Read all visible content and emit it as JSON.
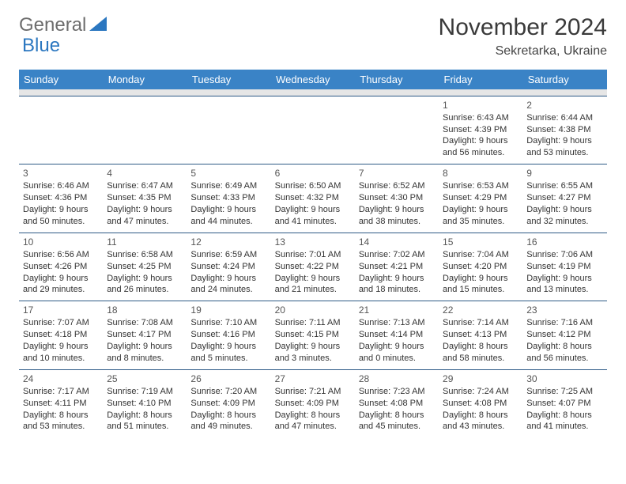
{
  "brand": {
    "part1": "General",
    "part2": "Blue"
  },
  "title": "November 2024",
  "location": "Sekretarka, Ukraine",
  "colors": {
    "header_bg": "#3a83c6",
    "header_text": "#ffffff",
    "sep_bg": "#e6e6e6",
    "border": "#2f5b87",
    "brand_grey": "#6d6d6d",
    "brand_blue": "#2b77c0",
    "text": "#333333"
  },
  "fonts": {
    "title_size": 30,
    "location_size": 16,
    "header_size": 13,
    "cell_size": 11
  },
  "weekdays": [
    "Sunday",
    "Monday",
    "Tuesday",
    "Wednesday",
    "Thursday",
    "Friday",
    "Saturday"
  ],
  "weeks": [
    [
      null,
      null,
      null,
      null,
      null,
      {
        "n": "1",
        "sunrise": "Sunrise: 6:43 AM",
        "sunset": "Sunset: 4:39 PM",
        "day": "Daylight: 9 hours and 56 minutes."
      },
      {
        "n": "2",
        "sunrise": "Sunrise: 6:44 AM",
        "sunset": "Sunset: 4:38 PM",
        "day": "Daylight: 9 hours and 53 minutes."
      }
    ],
    [
      {
        "n": "3",
        "sunrise": "Sunrise: 6:46 AM",
        "sunset": "Sunset: 4:36 PM",
        "day": "Daylight: 9 hours and 50 minutes."
      },
      {
        "n": "4",
        "sunrise": "Sunrise: 6:47 AM",
        "sunset": "Sunset: 4:35 PM",
        "day": "Daylight: 9 hours and 47 minutes."
      },
      {
        "n": "5",
        "sunrise": "Sunrise: 6:49 AM",
        "sunset": "Sunset: 4:33 PM",
        "day": "Daylight: 9 hours and 44 minutes."
      },
      {
        "n": "6",
        "sunrise": "Sunrise: 6:50 AM",
        "sunset": "Sunset: 4:32 PM",
        "day": "Daylight: 9 hours and 41 minutes."
      },
      {
        "n": "7",
        "sunrise": "Sunrise: 6:52 AM",
        "sunset": "Sunset: 4:30 PM",
        "day": "Daylight: 9 hours and 38 minutes."
      },
      {
        "n": "8",
        "sunrise": "Sunrise: 6:53 AM",
        "sunset": "Sunset: 4:29 PM",
        "day": "Daylight: 9 hours and 35 minutes."
      },
      {
        "n": "9",
        "sunrise": "Sunrise: 6:55 AM",
        "sunset": "Sunset: 4:27 PM",
        "day": "Daylight: 9 hours and 32 minutes."
      }
    ],
    [
      {
        "n": "10",
        "sunrise": "Sunrise: 6:56 AM",
        "sunset": "Sunset: 4:26 PM",
        "day": "Daylight: 9 hours and 29 minutes."
      },
      {
        "n": "11",
        "sunrise": "Sunrise: 6:58 AM",
        "sunset": "Sunset: 4:25 PM",
        "day": "Daylight: 9 hours and 26 minutes."
      },
      {
        "n": "12",
        "sunrise": "Sunrise: 6:59 AM",
        "sunset": "Sunset: 4:24 PM",
        "day": "Daylight: 9 hours and 24 minutes."
      },
      {
        "n": "13",
        "sunrise": "Sunrise: 7:01 AM",
        "sunset": "Sunset: 4:22 PM",
        "day": "Daylight: 9 hours and 21 minutes."
      },
      {
        "n": "14",
        "sunrise": "Sunrise: 7:02 AM",
        "sunset": "Sunset: 4:21 PM",
        "day": "Daylight: 9 hours and 18 minutes."
      },
      {
        "n": "15",
        "sunrise": "Sunrise: 7:04 AM",
        "sunset": "Sunset: 4:20 PM",
        "day": "Daylight: 9 hours and 15 minutes."
      },
      {
        "n": "16",
        "sunrise": "Sunrise: 7:06 AM",
        "sunset": "Sunset: 4:19 PM",
        "day": "Daylight: 9 hours and 13 minutes."
      }
    ],
    [
      {
        "n": "17",
        "sunrise": "Sunrise: 7:07 AM",
        "sunset": "Sunset: 4:18 PM",
        "day": "Daylight: 9 hours and 10 minutes."
      },
      {
        "n": "18",
        "sunrise": "Sunrise: 7:08 AM",
        "sunset": "Sunset: 4:17 PM",
        "day": "Daylight: 9 hours and 8 minutes."
      },
      {
        "n": "19",
        "sunrise": "Sunrise: 7:10 AM",
        "sunset": "Sunset: 4:16 PM",
        "day": "Daylight: 9 hours and 5 minutes."
      },
      {
        "n": "20",
        "sunrise": "Sunrise: 7:11 AM",
        "sunset": "Sunset: 4:15 PM",
        "day": "Daylight: 9 hours and 3 minutes."
      },
      {
        "n": "21",
        "sunrise": "Sunrise: 7:13 AM",
        "sunset": "Sunset: 4:14 PM",
        "day": "Daylight: 9 hours and 0 minutes."
      },
      {
        "n": "22",
        "sunrise": "Sunrise: 7:14 AM",
        "sunset": "Sunset: 4:13 PM",
        "day": "Daylight: 8 hours and 58 minutes."
      },
      {
        "n": "23",
        "sunrise": "Sunrise: 7:16 AM",
        "sunset": "Sunset: 4:12 PM",
        "day": "Daylight: 8 hours and 56 minutes."
      }
    ],
    [
      {
        "n": "24",
        "sunrise": "Sunrise: 7:17 AM",
        "sunset": "Sunset: 4:11 PM",
        "day": "Daylight: 8 hours and 53 minutes."
      },
      {
        "n": "25",
        "sunrise": "Sunrise: 7:19 AM",
        "sunset": "Sunset: 4:10 PM",
        "day": "Daylight: 8 hours and 51 minutes."
      },
      {
        "n": "26",
        "sunrise": "Sunrise: 7:20 AM",
        "sunset": "Sunset: 4:09 PM",
        "day": "Daylight: 8 hours and 49 minutes."
      },
      {
        "n": "27",
        "sunrise": "Sunrise: 7:21 AM",
        "sunset": "Sunset: 4:09 PM",
        "day": "Daylight: 8 hours and 47 minutes."
      },
      {
        "n": "28",
        "sunrise": "Sunrise: 7:23 AM",
        "sunset": "Sunset: 4:08 PM",
        "day": "Daylight: 8 hours and 45 minutes."
      },
      {
        "n": "29",
        "sunrise": "Sunrise: 7:24 AM",
        "sunset": "Sunset: 4:08 PM",
        "day": "Daylight: 8 hours and 43 minutes."
      },
      {
        "n": "30",
        "sunrise": "Sunrise: 7:25 AM",
        "sunset": "Sunset: 4:07 PM",
        "day": "Daylight: 8 hours and 41 minutes."
      }
    ]
  ]
}
